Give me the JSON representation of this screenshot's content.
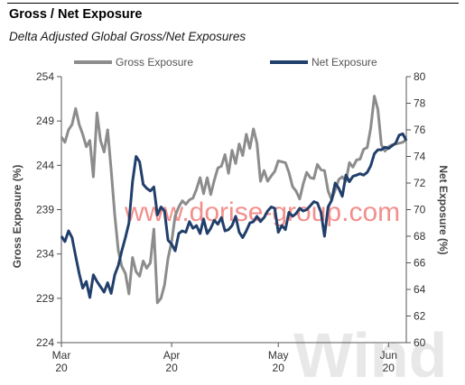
{
  "header": {
    "title": "Gross / Net Exposure",
    "subtitle": "Delta Adjusted Global Gross/Net Exposures"
  },
  "watermarks": {
    "url": "www.dorise-group.com",
    "brand": "Wind"
  },
  "chart_data": {
    "type": "line",
    "title": "Gross / Net Exposure",
    "subtitle": "Delta Adjusted Global Gross/Net Exposures",
    "x_ticks": [
      "Mar\n20",
      "Apr\n20",
      "May\n20",
      "Jun\n20"
    ],
    "x_tick_top": [
      "Mar",
      "Apr",
      "May",
      "Jun"
    ],
    "x_tick_bottom": [
      "20",
      "20",
      "20",
      "20"
    ],
    "x_tick_days": [
      0,
      31,
      61,
      92
    ],
    "x_range": [
      0,
      97
    ],
    "left_axis": {
      "label": "Gross Exposure (%)",
      "ylim": [
        224,
        254
      ],
      "ticks": [
        224,
        229,
        234,
        239,
        244,
        249,
        254
      ]
    },
    "right_axis": {
      "label": "Net Exposure (%)",
      "ylim": [
        60,
        80
      ],
      "ticks": [
        60,
        62,
        64,
        66,
        68,
        70,
        72,
        74,
        76,
        78,
        80
      ]
    },
    "legend_position": "top",
    "grid": false,
    "series": [
      {
        "name": "Gross Exposure",
        "axis": "left",
        "color": "#8c8c8c",
        "x": [
          0,
          1,
          2,
          3,
          4,
          5,
          6,
          7,
          8,
          9,
          10,
          11,
          12,
          13,
          14,
          15,
          16,
          17,
          18,
          19,
          20,
          21,
          22,
          23,
          24,
          25,
          26,
          27,
          28,
          29,
          30,
          31,
          32,
          33,
          34,
          35,
          36,
          37,
          38,
          39,
          40,
          41,
          42,
          43,
          44,
          45,
          46,
          47,
          48,
          49,
          50,
          51,
          52,
          53,
          54,
          55,
          56,
          57,
          58,
          59,
          60,
          61,
          62,
          63,
          64,
          65,
          66,
          67,
          68,
          69,
          70,
          71,
          72,
          73,
          74,
          75,
          76,
          77,
          78,
          79,
          80,
          81,
          82,
          83,
          84,
          85,
          86,
          87,
          88,
          89,
          90,
          91,
          92,
          93,
          94,
          95,
          96,
          97
        ],
        "values": [
          247.2,
          246.6,
          248.0,
          248.6,
          250.4,
          248.6,
          247.5,
          246.1,
          246.8,
          242.7,
          249.9,
          246.8,
          245.5,
          248.0,
          243.5,
          238.4,
          234.4,
          232.6,
          231.8,
          229.5,
          233.6,
          232.0,
          231.5,
          233.2,
          232.4,
          233.0,
          236.8,
          228.5,
          229.0,
          230.5,
          233.5,
          235.4,
          238.3,
          239.3,
          240.0,
          239.6,
          240.1,
          240.3,
          241.3,
          242.6,
          240.8,
          242.6,
          240.7,
          242.3,
          243.7,
          243.9,
          245.2,
          243.1,
          245.7,
          244.2,
          246.4,
          245.1,
          247.5,
          245.9,
          248.1,
          246.5,
          242.2,
          243.4,
          242.2,
          242.8,
          243.3,
          244.5,
          244.4,
          244.3,
          243.2,
          241.6,
          241.1,
          240.2,
          241.9,
          243.2,
          242.6,
          242.5,
          244.1,
          243.5,
          243.4,
          241.1,
          240.1,
          241.2,
          242.4,
          242.7,
          242.2,
          244.3,
          243.8,
          244.6,
          244.7,
          245.8,
          246.0,
          248.2,
          251.8,
          250.3,
          246.3,
          245.6,
          246.1,
          246.3,
          246.4,
          246.5,
          246.6,
          246.9
        ]
      },
      {
        "name": "Net Exposure",
        "axis": "right",
        "color": "#213f6b",
        "x": [
          0,
          1,
          2,
          3,
          4,
          5,
          6,
          7,
          8,
          9,
          10,
          11,
          12,
          13,
          14,
          15,
          16,
          17,
          18,
          19,
          20,
          21,
          22,
          23,
          24,
          25,
          26,
          27,
          28,
          29,
          30,
          31,
          32,
          33,
          34,
          35,
          36,
          37,
          38,
          39,
          40,
          41,
          42,
          43,
          44,
          45,
          46,
          47,
          48,
          49,
          50,
          51,
          52,
          53,
          54,
          55,
          56,
          57,
          58,
          59,
          60,
          61,
          62,
          63,
          64,
          65,
          66,
          67,
          68,
          69,
          70,
          71,
          72,
          73,
          74,
          75,
          76,
          77,
          78,
          79,
          80,
          81,
          82,
          83,
          84,
          85,
          86,
          87,
          88,
          89,
          90,
          91,
          92,
          93,
          94,
          95,
          96,
          97
        ],
        "values": [
          68.0,
          67.6,
          68.4,
          67.9,
          66.5,
          65.2,
          64.1,
          64.6,
          63.4,
          65.1,
          64.6,
          64.2,
          63.8,
          64.5,
          63.7,
          65.1,
          65.8,
          66.9,
          67.9,
          69.0,
          72.1,
          74.0,
          73.6,
          71.9,
          71.6,
          71.4,
          71.7,
          69.6,
          70.2,
          69.9,
          67.7,
          67.4,
          66.9,
          68.2,
          68.4,
          68.3,
          69.1,
          68.6,
          68.8,
          68.2,
          69.3,
          68.2,
          68.6,
          69.2,
          68.9,
          69.4,
          68.4,
          68.5,
          68.8,
          69.5,
          68.3,
          67.9,
          68.4,
          69.0,
          69.1,
          69.5,
          69.1,
          69.4,
          69.9,
          70.2,
          70.1,
          68.3,
          68.8,
          68.5,
          69.8,
          69.5,
          69.7,
          70.1,
          69.9,
          70.0,
          70.3,
          70.6,
          70.5,
          69.8,
          68.0,
          70.2,
          70.7,
          72.0,
          71.6,
          71.0,
          72.6,
          72.1,
          72.5,
          72.6,
          72.7,
          72.6,
          72.8,
          73.3,
          74.2,
          74.5,
          74.5,
          74.7,
          74.6,
          74.8,
          75.0,
          75.6,
          75.7,
          75.2
        ]
      }
    ]
  }
}
